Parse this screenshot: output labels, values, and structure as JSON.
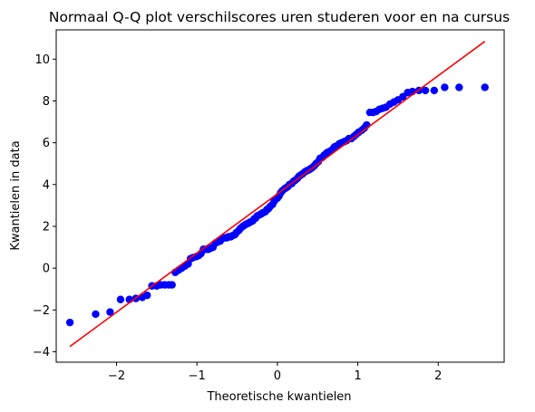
{
  "chart_data": {
    "type": "scatter",
    "title": "Normaal Q-Q plot verschilscores uren studeren voor en na cursus",
    "xlabel": "Theoretische kwantielen",
    "ylabel": "Kwantielen in data",
    "xlim": [
      -2.75,
      2.82
    ],
    "ylim": [
      -4.5,
      11.4
    ],
    "xticks": [
      -2,
      -1,
      0,
      1,
      2
    ],
    "yticks": [
      -4,
      -2,
      0,
      2,
      4,
      6,
      8,
      10
    ],
    "xtick_labels": [
      "−2",
      "−1",
      "0",
      "1",
      "2"
    ],
    "ytick_labels": [
      "−4",
      "−2",
      "0",
      "2",
      "4",
      "6",
      "8",
      "10"
    ],
    "grid": false,
    "colors": {
      "points": "#0000ff",
      "line": "#ff0000"
    },
    "reference_line": {
      "x": [
        -2.58,
        2.58
      ],
      "y": [
        -3.75,
        10.85
      ]
    },
    "points": [
      [
        -2.58,
        -2.6
      ],
      [
        -2.26,
        -2.2
      ],
      [
        -2.08,
        -2.1
      ],
      [
        -1.95,
        -1.5
      ],
      [
        -1.84,
        -1.5
      ],
      [
        -1.76,
        -1.45
      ],
      [
        -1.68,
        -1.4
      ],
      [
        -1.62,
        -1.3
      ],
      [
        -1.56,
        -0.85
      ],
      [
        -1.5,
        -0.85
      ],
      [
        -1.45,
        -0.8
      ],
      [
        -1.4,
        -0.8
      ],
      [
        -1.35,
        -0.8
      ],
      [
        -1.31,
        -0.8
      ],
      [
        -1.27,
        -0.2
      ],
      [
        -1.23,
        -0.1
      ],
      [
        -1.19,
        0.0
      ],
      [
        -1.15,
        0.1
      ],
      [
        -1.11,
        0.2
      ],
      [
        -1.08,
        0.45
      ],
      [
        -1.05,
        0.5
      ],
      [
        -1.01,
        0.55
      ],
      [
        -0.98,
        0.6
      ],
      [
        -0.95,
        0.7
      ],
      [
        -0.92,
        0.9
      ],
      [
        -0.89,
        0.9
      ],
      [
        -0.86,
        0.9
      ],
      [
        -0.83,
        0.95
      ],
      [
        -0.8,
        1.0
      ],
      [
        -0.77,
        1.2
      ],
      [
        -0.74,
        1.25
      ],
      [
        -0.71,
        1.3
      ],
      [
        -0.69,
        1.4
      ],
      [
        -0.66,
        1.45
      ],
      [
        -0.63,
        1.45
      ],
      [
        -0.61,
        1.5
      ],
      [
        -0.58,
        1.5
      ],
      [
        -0.56,
        1.55
      ],
      [
        -0.53,
        1.6
      ],
      [
        -0.51,
        1.7
      ],
      [
        -0.48,
        1.8
      ],
      [
        -0.46,
        1.9
      ],
      [
        -0.43,
        2.0
      ],
      [
        -0.41,
        2.05
      ],
      [
        -0.39,
        2.1
      ],
      [
        -0.36,
        2.15
      ],
      [
        -0.34,
        2.2
      ],
      [
        -0.31,
        2.25
      ],
      [
        -0.29,
        2.35
      ],
      [
        -0.27,
        2.4
      ],
      [
        -0.25,
        2.5
      ],
      [
        -0.22,
        2.55
      ],
      [
        -0.2,
        2.6
      ],
      [
        -0.18,
        2.65
      ],
      [
        -0.15,
        2.7
      ],
      [
        -0.13,
        2.8
      ],
      [
        -0.11,
        2.85
      ],
      [
        -0.09,
        2.95
      ],
      [
        -0.06,
        3.05
      ],
      [
        -0.04,
        3.2
      ],
      [
        -0.02,
        3.3
      ],
      [
        0.0,
        3.35
      ],
      [
        0.02,
        3.45
      ],
      [
        0.04,
        3.6
      ],
      [
        0.06,
        3.7
      ],
      [
        0.09,
        3.8
      ],
      [
        0.11,
        3.85
      ],
      [
        0.13,
        3.9
      ],
      [
        0.15,
        4.0
      ],
      [
        0.18,
        4.05
      ],
      [
        0.2,
        4.15
      ],
      [
        0.22,
        4.2
      ],
      [
        0.25,
        4.3
      ],
      [
        0.27,
        4.4
      ],
      [
        0.29,
        4.45
      ],
      [
        0.31,
        4.5
      ],
      [
        0.34,
        4.6
      ],
      [
        0.36,
        4.65
      ],
      [
        0.39,
        4.7
      ],
      [
        0.41,
        4.75
      ],
      [
        0.43,
        4.8
      ],
      [
        0.46,
        4.9
      ],
      [
        0.48,
        5.0
      ],
      [
        0.51,
        5.1
      ],
      [
        0.53,
        5.25
      ],
      [
        0.56,
        5.3
      ],
      [
        0.58,
        5.4
      ],
      [
        0.61,
        5.5
      ],
      [
        0.63,
        5.55
      ],
      [
        0.66,
        5.6
      ],
      [
        0.69,
        5.7
      ],
      [
        0.71,
        5.8
      ],
      [
        0.74,
        5.85
      ],
      [
        0.77,
        5.95
      ],
      [
        0.8,
        6.0
      ],
      [
        0.83,
        6.05
      ],
      [
        0.86,
        6.1
      ],
      [
        0.89,
        6.2
      ],
      [
        0.92,
        6.2
      ],
      [
        0.95,
        6.3
      ],
      [
        0.98,
        6.4
      ],
      [
        1.01,
        6.5
      ],
      [
        1.05,
        6.6
      ],
      [
        1.08,
        6.7
      ],
      [
        1.11,
        6.85
      ],
      [
        1.15,
        7.45
      ],
      [
        1.19,
        7.45
      ],
      [
        1.23,
        7.5
      ],
      [
        1.27,
        7.6
      ],
      [
        1.31,
        7.65
      ],
      [
        1.35,
        7.7
      ],
      [
        1.4,
        7.85
      ],
      [
        1.45,
        7.95
      ],
      [
        1.5,
        8.05
      ],
      [
        1.56,
        8.2
      ],
      [
        1.62,
        8.4
      ],
      [
        1.68,
        8.45
      ],
      [
        1.76,
        8.5
      ],
      [
        1.84,
        8.5
      ],
      [
        1.95,
        8.5
      ],
      [
        2.08,
        8.65
      ],
      [
        2.26,
        8.65
      ],
      [
        2.58,
        8.65
      ]
    ]
  }
}
